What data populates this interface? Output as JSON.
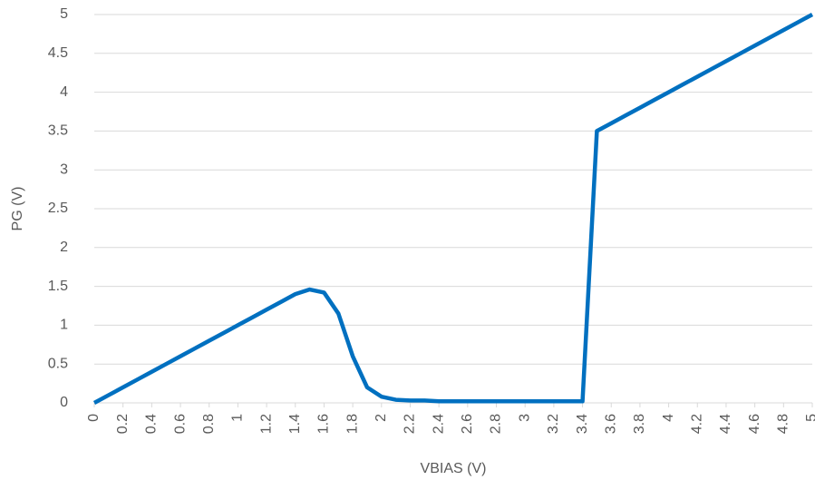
{
  "chart_data": {
    "type": "line",
    "x_label": "VBIAS (V)",
    "y_label": "PG (V)",
    "x": [
      0,
      0.1,
      0.2,
      0.3,
      0.4,
      0.5,
      0.6,
      0.7,
      0.8,
      0.9,
      1,
      1.1,
      1.2,
      1.3,
      1.4,
      1.5,
      1.6,
      1.7,
      1.8,
      1.9,
      2,
      2.1,
      2.2,
      2.3,
      2.4,
      2.5,
      2.6,
      2.7,
      2.8,
      2.9,
      3,
      3.1,
      3.2,
      3.3,
      3.4,
      3.5,
      3.6,
      3.7,
      3.8,
      3.9,
      4,
      4.1,
      4.2,
      4.3,
      4.4,
      4.5,
      4.6,
      4.7,
      4.8,
      4.9,
      5
    ],
    "series": [
      {
        "color": "#0070c0",
        "values": [
          0,
          0.1,
          0.2,
          0.3,
          0.4,
          0.5,
          0.6,
          0.7,
          0.8,
          0.9,
          1,
          1.1,
          1.2,
          1.3,
          1.4,
          1.46,
          1.42,
          1.15,
          0.6,
          0.2,
          0.08,
          0.04,
          0.03,
          0.03,
          0.02,
          0.02,
          0.02,
          0.02,
          0.02,
          0.02,
          0.02,
          0.02,
          0.02,
          0.02,
          0.02,
          3.5,
          3.6,
          3.7,
          3.8,
          3.9,
          4,
          4.1,
          4.2,
          4.3,
          4.4,
          4.5,
          4.6,
          4.7,
          4.8,
          4.9,
          5
        ]
      }
    ],
    "xlim": [
      0,
      5
    ],
    "xticks": [
      0,
      0.2,
      0.4,
      0.6,
      0.8,
      1,
      1.2,
      1.4,
      1.6,
      1.8,
      2,
      2.2,
      2.4,
      2.6,
      2.8,
      3,
      3.2,
      3.4,
      3.6,
      3.8,
      4,
      4.2,
      4.4,
      4.6,
      4.8,
      5
    ],
    "ylim": [
      0,
      5
    ],
    "yticks": [
      0,
      0.5,
      1,
      1.5,
      2,
      2.5,
      3,
      3.5,
      4,
      4.5,
      5
    ],
    "grid": true
  }
}
